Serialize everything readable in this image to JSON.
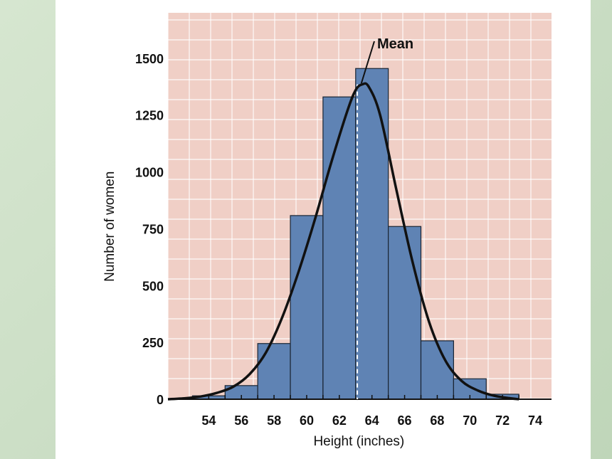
{
  "chart_data": {
    "type": "bar",
    "xlabel": "Height (inches)",
    "ylabel": "Number of women",
    "x_ticks": [
      "54",
      "56",
      "58",
      "60",
      "62",
      "64",
      "66",
      "68",
      "70",
      "72",
      "74"
    ],
    "y_ticks": [
      "0",
      "250",
      "500",
      "750",
      "1000",
      "1250",
      "1500"
    ],
    "xlim": [
      51.5,
      75
    ],
    "ylim": [
      0,
      1700
    ],
    "bins": [
      {
        "from": 53,
        "to": 55,
        "value": 15
      },
      {
        "from": 55,
        "to": 57,
        "value": 60
      },
      {
        "from": 57,
        "to": 59,
        "value": 245
      },
      {
        "from": 59,
        "to": 61,
        "value": 808
      },
      {
        "from": 61,
        "to": 63,
        "value": 1330
      },
      {
        "from": 63,
        "to": 65,
        "value": 1455
      },
      {
        "from": 65,
        "to": 67,
        "value": 760
      },
      {
        "from": 67,
        "to": 69,
        "value": 257
      },
      {
        "from": 69,
        "to": 71,
        "value": 90
      },
      {
        "from": 71,
        "to": 73,
        "value": 22
      }
    ],
    "curve": {
      "points": [
        [
          51.5,
          0
        ],
        [
          52.5,
          4
        ],
        [
          53.5,
          12
        ],
        [
          54.5,
          28
        ],
        [
          55.5,
          55
        ],
        [
          56.5,
          110
        ],
        [
          57.5,
          205
        ],
        [
          58.5,
          360
        ],
        [
          59.5,
          560
        ],
        [
          60.5,
          790
        ],
        [
          61.5,
          1040
        ],
        [
          62.5,
          1270
        ],
        [
          63.0,
          1360
        ],
        [
          63.4,
          1385
        ],
        [
          63.8,
          1375
        ],
        [
          64.5,
          1250
        ],
        [
          65.5,
          920
        ],
        [
          66.5,
          600
        ],
        [
          67.5,
          340
        ],
        [
          68.5,
          170
        ],
        [
          69.5,
          80
        ],
        [
          70.5,
          38
        ],
        [
          71.5,
          15
        ],
        [
          72.5,
          4
        ],
        [
          73.0,
          0
        ]
      ]
    },
    "mean": {
      "value": 63.1,
      "label": "Mean"
    },
    "grid": true,
    "colors": {
      "bar": "#5f83b4",
      "bar_edge": "#1a2533",
      "curve": "#111111",
      "grid_bg": "#f0cfc6",
      "mean_line": "#ffffff"
    }
  }
}
